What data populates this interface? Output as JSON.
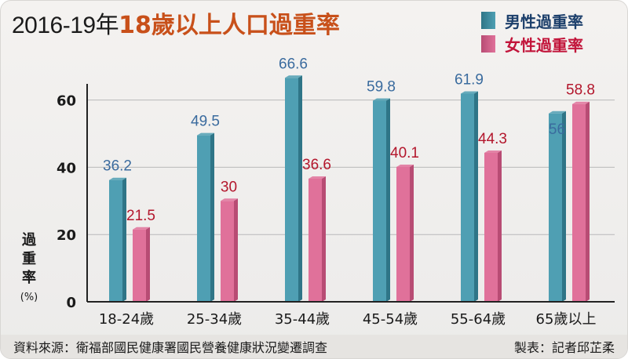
{
  "title": {
    "prefix": "2016-19年",
    "main": "18歲以上人口過重率"
  },
  "footer": {
    "source": "資料來源：衛福部國民健康署國民營養健康狀況變遷調查",
    "credit": "製表：記者邱芷柔"
  },
  "colors": {
    "male": "#4f9fb3",
    "male_dark": "#2f7587",
    "male_label": "#3a6b9e",
    "female": "#e0719a",
    "female_dark": "#b84c74",
    "female_label": "#b3162c",
    "grid": "#b9b9b9",
    "axis": "#222222"
  },
  "chart_data": {
    "type": "bar",
    "title": "2016-19年18歲以上人口過重率",
    "categories": [
      "18-24歲",
      "25-34歲",
      "35-44歲",
      "45-54歲",
      "55-64歲",
      "65歲以上"
    ],
    "series": [
      {
        "name": "男性過重率",
        "values": [
          36.2,
          49.5,
          66.6,
          59.8,
          61.9,
          56
        ]
      },
      {
        "name": "女性過重率",
        "values": [
          21.5,
          30,
          36.6,
          40.1,
          44.3,
          58.8
        ]
      }
    ],
    "ylabel": "過重率",
    "yunit": "(%)",
    "yticks": [
      0,
      20,
      40,
      60
    ],
    "ylim": [
      0,
      70
    ],
    "grid": true,
    "legend": "top-right"
  }
}
